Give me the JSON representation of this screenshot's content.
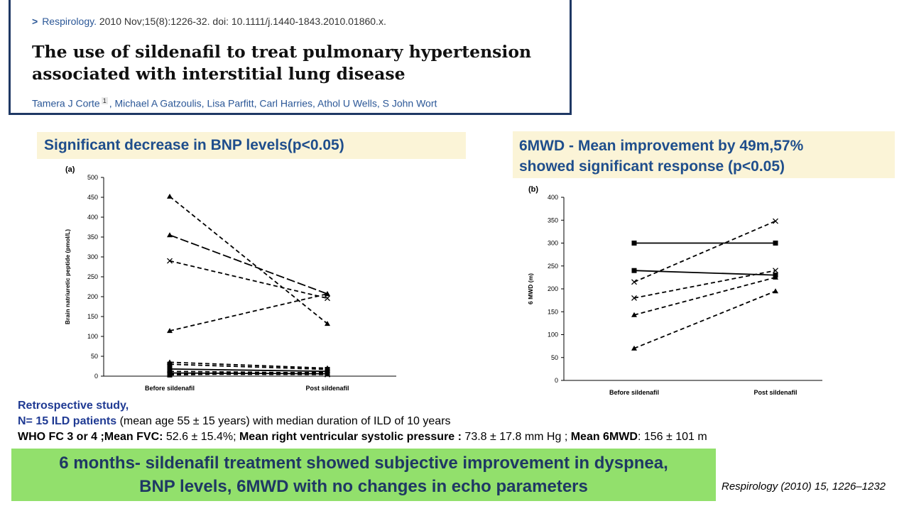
{
  "citation": {
    "chevron": ">",
    "journal": "Respirology.",
    "details": "2010 Nov;15(8):1226-32. doi: 10.1111/j.1440-1843.2010.01860.x.",
    "title_line1": "The use of sildenafil to treat pulmonary hypertension",
    "title_line2": "associated with interstitial lung disease",
    "author_first": "Tamera J Corte",
    "author_sup": "1",
    "authors_rest": ", Michael A Gatzoulis, Lisa Parfitt, Carl Harries, Athol U Wells, S John Wort"
  },
  "headings": {
    "bnp": "Significant decrease in BNP levels(p<0.05)",
    "mwd_line1": "6MWD - Mean improvement by 49m,57%",
    "mwd_line2": "showed significant response (p<0.05)"
  },
  "chart_data": [
    {
      "type": "line",
      "panel": "(a)",
      "categories": [
        "Before sildenafil",
        "Post sildenafil"
      ],
      "ylabel": "Brain natriuretic peptide (pmol/L)",
      "ylim": [
        0,
        500
      ],
      "yticks": [
        0,
        50,
        100,
        150,
        200,
        250,
        300,
        350,
        400,
        450,
        500
      ],
      "series": [
        {
          "values": [
            452,
            132
          ],
          "marker": "triangle",
          "dash": "dashed"
        },
        {
          "values": [
            355,
            207
          ],
          "marker": "triangle",
          "dash": "longdash"
        },
        {
          "values": [
            290,
            196
          ],
          "marker": "x",
          "dash": "dashed"
        },
        {
          "values": [
            114,
            207
          ],
          "marker": "triangle",
          "dash": "dashed"
        },
        {
          "values": [
            35,
            20
          ],
          "marker": "triangle",
          "dash": "dashed"
        },
        {
          "values": [
            30,
            17
          ],
          "marker": "square",
          "dash": "dashed"
        },
        {
          "values": [
            18,
            12
          ],
          "marker": "square",
          "dash": "solid"
        },
        {
          "values": [
            12,
            8
          ],
          "marker": "square",
          "dash": "dashed"
        },
        {
          "values": [
            8,
            6
          ],
          "marker": "square",
          "dash": "solid"
        },
        {
          "values": [
            5,
            4
          ],
          "marker": "x",
          "dash": "dashed"
        },
        {
          "values": [
            3,
            10
          ],
          "marker": "square",
          "dash": "dashed"
        }
      ]
    },
    {
      "type": "line",
      "panel": "(b)",
      "categories": [
        "Before sildenafil",
        "Post sildenafil"
      ],
      "ylabel": "6 MWD (m)",
      "ylim": [
        0,
        400
      ],
      "yticks": [
        0,
        50,
        100,
        150,
        200,
        250,
        300,
        350,
        400
      ],
      "series": [
        {
          "values": [
            300,
            300
          ],
          "marker": "square",
          "dash": "solid"
        },
        {
          "values": [
            240,
            230
          ],
          "marker": "square",
          "dash": "solid"
        },
        {
          "values": [
            215,
            348
          ],
          "marker": "x",
          "dash": "dashed"
        },
        {
          "values": [
            180,
            240
          ],
          "marker": "x",
          "dash": "dashed"
        },
        {
          "values": [
            143,
            225
          ],
          "marker": "triangle",
          "dash": "dashed"
        },
        {
          "values": [
            70,
            195
          ],
          "marker": "triangle",
          "dash": "dashed"
        }
      ]
    }
  ],
  "study": {
    "line1": "Retrospective study,",
    "n_label": "N= 15 ILD patients",
    "n_rest": " (mean age 55 ± 15 years) with median duration of ILD of 10 years",
    "who_label": "WHO FC 3 or 4 ;Mean FVC:",
    "fvc_value": " 52.6 ± 15.4%;",
    "rvsp_label": " Mean right ventricular systolic pressure :",
    "rvsp_value": " 73.8 ± 17.8 mm Hg ;",
    "mwd_label": " Mean 6MWD",
    "mwd_value": ": 156 ± 101 m"
  },
  "summary": {
    "line1": "6 months- sildenafil treatment showed subjective improvement in dyspnea,",
    "line2": "BNP levels, 6MWD with no changes in echo parameters"
  },
  "reference": "Respirology (2010) 15, 1226–1232"
}
